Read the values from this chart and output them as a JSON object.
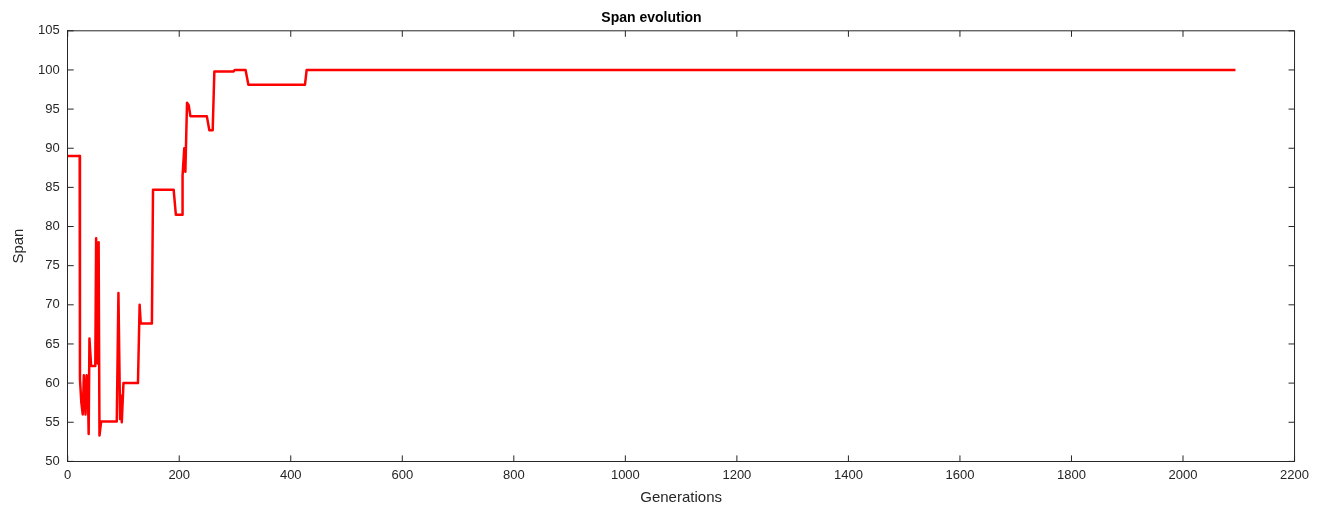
{
  "chart_data": {
    "type": "line",
    "title": "Span evolution",
    "xlabel": "Generations",
    "ylabel": "Span",
    "xlim": [
      0,
      2200
    ],
    "xticks": [
      0,
      200,
      400,
      600,
      800,
      1000,
      1200,
      1400,
      1600,
      1800,
      2000,
      2200
    ],
    "ylim": [
      50,
      105
    ],
    "yticks": [
      50,
      55,
      60,
      65,
      70,
      75,
      80,
      85,
      90,
      95,
      100,
      105
    ],
    "grid": false,
    "legend": false,
    "marker": "none",
    "line_style": "solid",
    "series": [
      {
        "color": "#ff0000",
        "x": [
          0,
          21.5,
          22,
          24.5,
          27,
          29,
          32,
          34,
          35,
          36,
          37.6,
          39,
          42,
          49.5,
          51,
          54,
          55.5,
          57,
          60,
          88,
          91,
          94,
          96,
          97,
          100,
          126,
          129,
          131,
          151,
          153,
          190,
          194,
          205,
          206,
          209,
          211,
          214,
          217,
          220,
          249.5,
          254,
          260,
          263,
          297,
          300,
          319,
          324,
          425.5,
          428.5,
          2094
        ],
        "values": [
          89,
          89,
          60.5,
          57.5,
          56,
          61,
          56,
          61,
          57,
          60,
          53.5,
          65.7,
          62.2,
          62.2,
          78.5,
          62.5,
          78,
          53.3,
          55.1,
          55.1,
          71.5,
          55.4,
          58.4,
          55,
          60,
          60,
          70,
          67.6,
          67.6,
          84.7,
          84.7,
          81.5,
          81.5,
          86.5,
          90,
          87,
          95.8,
          95.5,
          94.1,
          94.1,
          92.3,
          92.3,
          99.8,
          99.8,
          100,
          100,
          98.1,
          98.1,
          100,
          100
        ]
      }
    ]
  }
}
